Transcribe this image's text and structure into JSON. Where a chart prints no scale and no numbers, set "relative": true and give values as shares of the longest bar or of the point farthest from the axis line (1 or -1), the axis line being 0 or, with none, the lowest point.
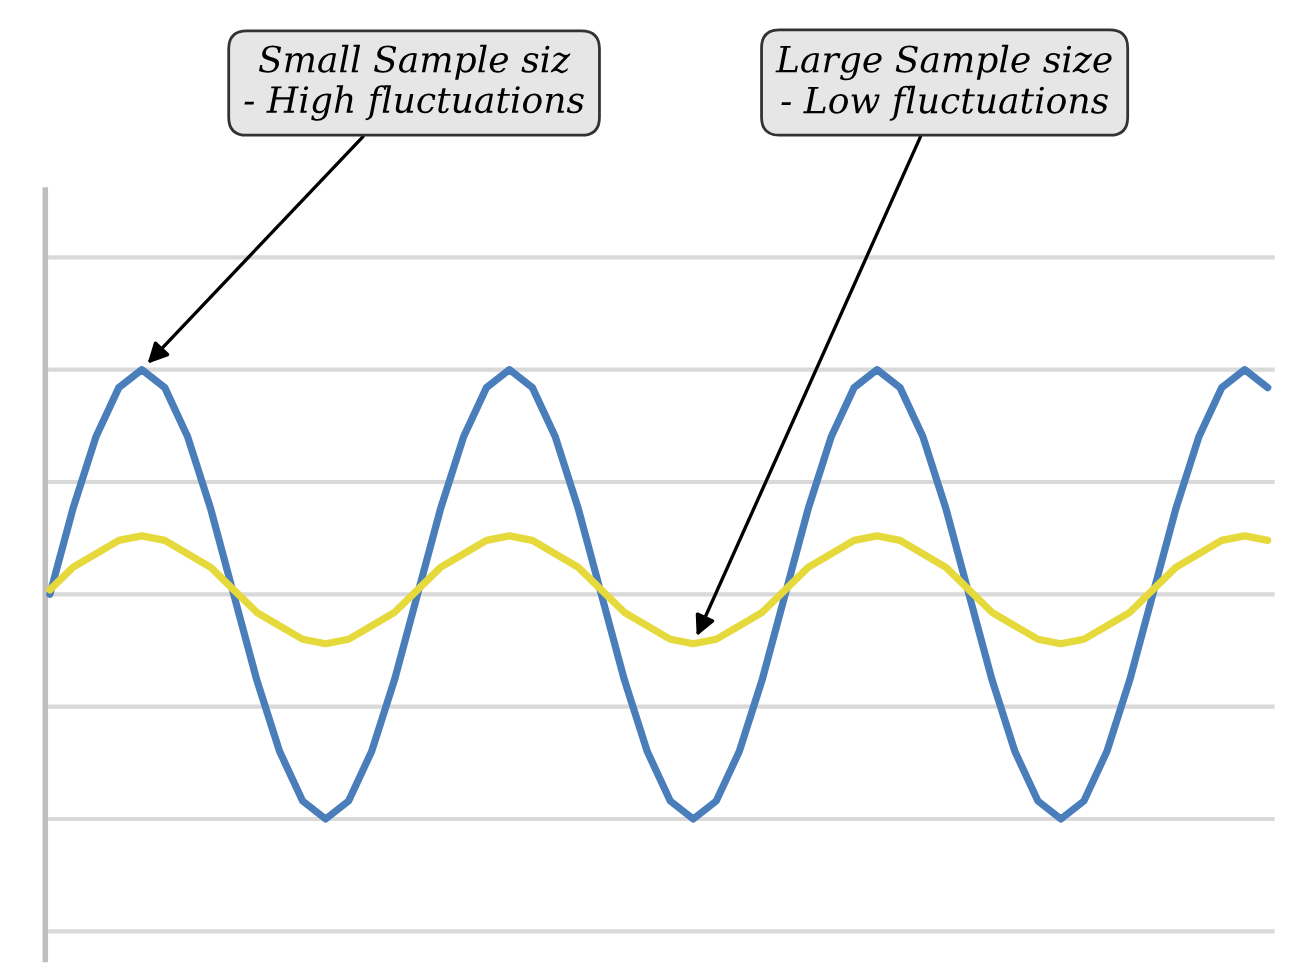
{
  "chart_data": {
    "type": "line",
    "relative": true,
    "grid": "y",
    "marker": "none",
    "line_style": "solid",
    "categories": [
      null,
      null,
      null,
      null,
      null,
      null,
      null,
      null,
      null,
      null,
      null,
      null,
      null,
      null,
      null,
      null,
      null,
      null,
      null,
      null,
      null,
      null,
      null,
      null,
      null,
      null,
      null,
      null,
      null,
      null,
      null,
      null,
      null,
      null,
      null,
      null,
      null,
      null,
      null,
      null,
      null,
      null,
      null,
      null,
      null,
      null,
      null,
      null,
      null,
      null,
      null,
      null,
      null,
      null
    ],
    "series": [
      {
        "color": "#4a7ebb",
        "values": [
          0.5,
          0.69,
          0.85,
          0.96,
          1,
          0.96,
          0.85,
          0.69,
          0.5,
          0.31,
          0.15,
          0.04,
          0,
          0.04,
          0.15,
          0.31,
          0.5,
          0.69,
          0.85,
          0.96,
          1,
          0.96,
          0.85,
          0.69,
          0.5,
          0.31,
          0.15,
          0.04,
          0,
          0.04,
          0.15,
          0.31,
          0.5,
          0.69,
          0.85,
          0.96,
          1,
          0.96,
          0.85,
          0.69,
          0.5,
          0.31,
          0.15,
          0.04,
          0,
          0.04,
          0.15,
          0.31,
          0.5,
          0.69,
          0.85,
          0.96,
          1,
          0.96
        ]
      },
      {
        "color": "#e6d93c",
        "values": [
          0.51,
          0.56,
          0.59,
          0.62,
          0.63,
          0.62,
          0.59,
          0.56,
          0.51,
          0.46,
          0.43,
          0.4,
          0.39,
          0.4,
          0.43,
          0.46,
          0.51,
          0.56,
          0.59,
          0.62,
          0.63,
          0.62,
          0.59,
          0.56,
          0.51,
          0.46,
          0.43,
          0.4,
          0.39,
          0.4,
          0.43,
          0.46,
          0.51,
          0.56,
          0.59,
          0.62,
          0.63,
          0.62,
          0.59,
          0.56,
          0.51,
          0.46,
          0.43,
          0.4,
          0.39,
          0.4,
          0.43,
          0.46,
          0.51,
          0.56,
          0.59,
          0.62,
          0.63,
          0.62
        ]
      }
    ],
    "annotations": [
      "Small Sample siz\n- High fluctuations",
      "Large Sample size\n- Low fluctuations"
    ]
  }
}
